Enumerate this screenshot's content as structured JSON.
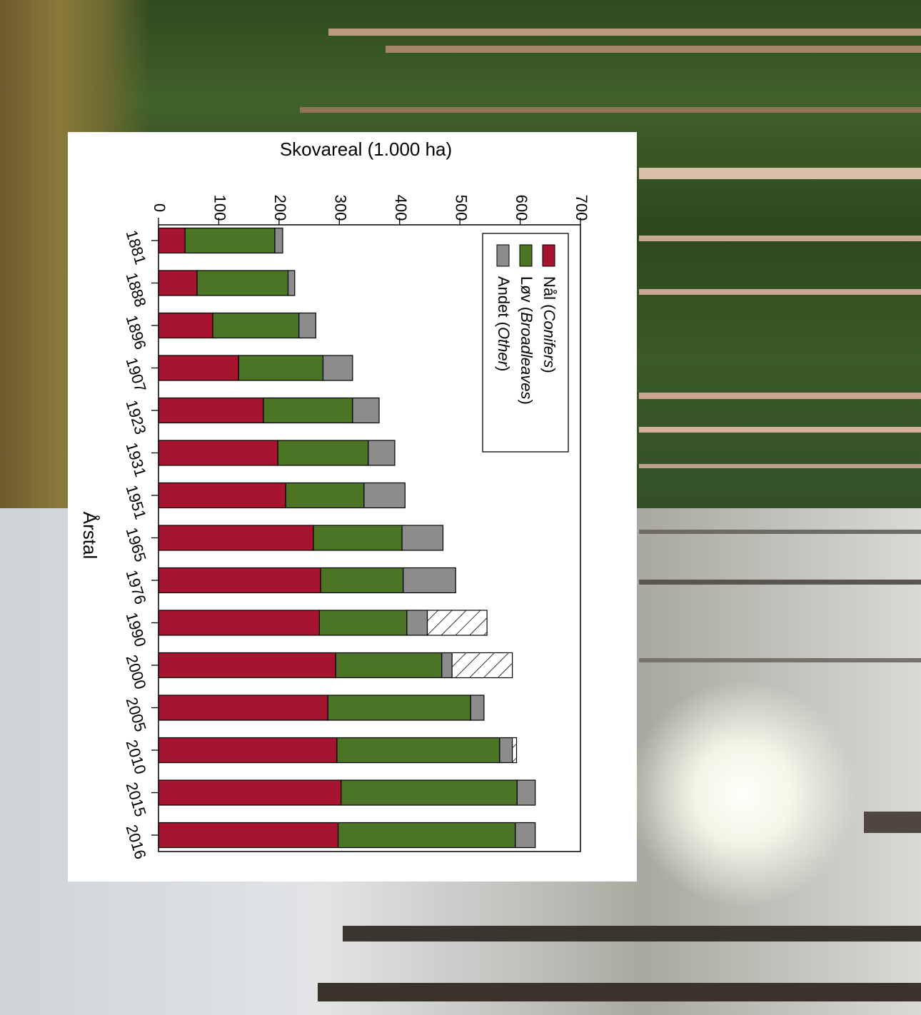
{
  "colors": {
    "conifers": "#a6142f",
    "broadleaves": "#4b7424",
    "other": "#8c8c8c",
    "hatched": "#ffffff"
  },
  "chart_data": {
    "type": "bar",
    "orientation": "horizontal-stacked",
    "xlabel": "Skovareal (1.000 ha)",
    "ylabel": "Årstal",
    "xlim": [
      0,
      700
    ],
    "xticks": [
      0,
      100,
      200,
      300,
      400,
      500,
      600,
      700
    ],
    "grid": false,
    "legend_position": "top-right",
    "categories": [
      "1881",
      "1888",
      "1896",
      "1907",
      "1923",
      "1931",
      "1951",
      "1965",
      "1976",
      "1990",
      "2000",
      "2005",
      "2010",
      "2015",
      "2016"
    ],
    "series": [
      {
        "name": "Nål",
        "name_italic": "Conifers",
        "color_key": "conifers",
        "values": [
          44,
          64,
          90,
          133,
          174,
          198,
          211,
          257,
          269,
          267,
          294,
          281,
          296,
          303,
          298
        ]
      },
      {
        "name": "Løv",
        "name_italic": "Broadleaves",
        "color_key": "broadleaves",
        "values": [
          149,
          151,
          143,
          140,
          148,
          150,
          130,
          147,
          137,
          145,
          176,
          237,
          270,
          292,
          294
        ]
      },
      {
        "name": "Andet",
        "name_italic": "Other",
        "color_key": "other",
        "values": [
          13,
          11,
          28,
          49,
          44,
          44,
          68,
          68,
          87,
          34,
          17,
          22,
          21,
          30,
          33
        ]
      },
      {
        "name": "",
        "color_key": "hatched",
        "pattern": "diagonal-hatch",
        "values": [
          0,
          0,
          0,
          0,
          0,
          0,
          0,
          0,
          0,
          99,
          100,
          0,
          7,
          0,
          0
        ]
      }
    ]
  }
}
